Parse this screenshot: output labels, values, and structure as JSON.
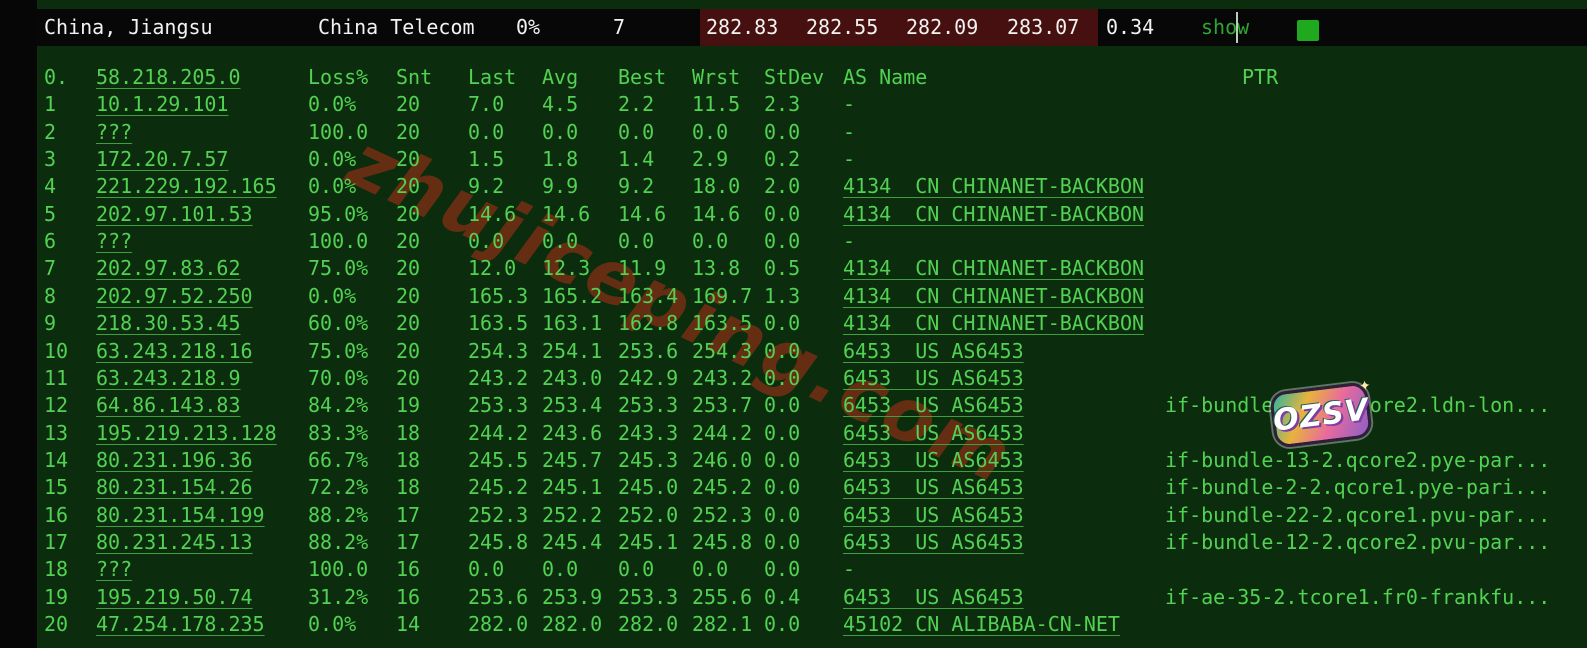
{
  "colors": {
    "bg": "#0b2d0e",
    "strip": "#060606",
    "bar_bg": "#070707",
    "bar_text": "#f2f2f2",
    "maroon": "#471010",
    "green": "#52d152",
    "underline": "#3f9e3f",
    "show_green": "#2fa62f",
    "square_green": "#1ea91e",
    "watermark": "#7c2d12"
  },
  "summary_bar": {
    "location": "China, Jiangsu",
    "isp": "China Telecom",
    "loss": "0%",
    "hops": "7",
    "latencies": [
      "282.83",
      "282.55",
      "282.09",
      "283.07"
    ],
    "stdev": "0.34",
    "show_label": "show",
    "status_square_icon": "green-square"
  },
  "watermark_text": "zhujiceping.com",
  "sticker_text": "OZSV",
  "trace_table": {
    "header": {
      "hop": "0.",
      "ip": "58.218.205.0",
      "loss": "Loss%",
      "snt": "Snt",
      "last": "Last",
      "avg": "Avg",
      "best": "Best",
      "wrst": "Wrst",
      "stdev": "StDev",
      "asname": "AS Name",
      "ptr": "PTR"
    },
    "rows": [
      {
        "hop": "1",
        "ip": "10.1.29.101",
        "loss": "0.0%",
        "snt": "20",
        "last": "7.0",
        "avg": "4.5",
        "best": "2.2",
        "wrst": "11.5",
        "stdev": "2.3",
        "asname": "-",
        "ptr": ""
      },
      {
        "hop": "2",
        "ip": "???",
        "loss": "100.0",
        "snt": "20",
        "last": "0.0",
        "avg": "0.0",
        "best": "0.0",
        "wrst": "0.0",
        "stdev": "0.0",
        "asname": "-",
        "ptr": ""
      },
      {
        "hop": "3",
        "ip": "172.20.7.57",
        "loss": "0.0%",
        "snt": "20",
        "last": "1.5",
        "avg": "1.8",
        "best": "1.4",
        "wrst": "2.9",
        "stdev": "0.2",
        "asname": "-",
        "ptr": ""
      },
      {
        "hop": "4",
        "ip": "221.229.192.165",
        "loss": "0.0%",
        "snt": "20",
        "last": "9.2",
        "avg": "9.9",
        "best": "9.2",
        "wrst": "18.0",
        "stdev": "2.0",
        "asname": "4134  CN CHINANET-BACKBON",
        "ptr": ""
      },
      {
        "hop": "5",
        "ip": "202.97.101.53",
        "loss": "95.0%",
        "snt": "20",
        "last": "14.6",
        "avg": "14.6",
        "best": "14.6",
        "wrst": "14.6",
        "stdev": "0.0",
        "asname": "4134  CN CHINANET-BACKBON",
        "ptr": ""
      },
      {
        "hop": "6",
        "ip": "???",
        "loss": "100.0",
        "snt": "20",
        "last": "0.0",
        "avg": "0.0",
        "best": "0.0",
        "wrst": "0.0",
        "stdev": "0.0",
        "asname": "-",
        "ptr": ""
      },
      {
        "hop": "7",
        "ip": "202.97.83.62",
        "loss": "75.0%",
        "snt": "20",
        "last": "12.0",
        "avg": "12.3",
        "best": "11.9",
        "wrst": "13.8",
        "stdev": "0.5",
        "asname": "4134  CN CHINANET-BACKBON",
        "ptr": ""
      },
      {
        "hop": "8",
        "ip": "202.97.52.250",
        "loss": "0.0%",
        "snt": "20",
        "last": "165.3",
        "avg": "165.2",
        "best": "163.4",
        "wrst": "169.7",
        "stdev": "1.3",
        "asname": "4134  CN CHINANET-BACKBON",
        "ptr": ""
      },
      {
        "hop": "9",
        "ip": "218.30.53.45",
        "loss": "60.0%",
        "snt": "20",
        "last": "163.5",
        "avg": "163.1",
        "best": "162.8",
        "wrst": "163.5",
        "stdev": "0.0",
        "asname": "4134  CN CHINANET-BACKBON",
        "ptr": ""
      },
      {
        "hop": "10",
        "ip": "63.243.218.16",
        "loss": "75.0%",
        "snt": "20",
        "last": "254.3",
        "avg": "254.1",
        "best": "253.6",
        "wrst": "254.3",
        "stdev": "0.0",
        "asname": "6453  US AS6453",
        "ptr": ""
      },
      {
        "hop": "11",
        "ip": "63.243.218.9",
        "loss": "70.0%",
        "snt": "20",
        "last": "243.2",
        "avg": "243.0",
        "best": "242.9",
        "wrst": "243.2",
        "stdev": "0.0",
        "asname": "6453  US AS6453",
        "ptr": ""
      },
      {
        "hop": "12",
        "ip": "64.86.143.83",
        "loss": "84.2%",
        "snt": "19",
        "last": "253.3",
        "avg": "253.4",
        "best": "253.3",
        "wrst": "253.7",
        "stdev": "0.0",
        "asname": "6453  US AS6453",
        "ptr": "if-bundle-12-2.qcore2.ldn-lon..."
      },
      {
        "hop": "13",
        "ip": "195.219.213.128",
        "loss": "83.3%",
        "snt": "18",
        "last": "244.2",
        "avg": "243.6",
        "best": "243.3",
        "wrst": "244.2",
        "stdev": "0.0",
        "asname": "6453  US AS6453",
        "ptr": ""
      },
      {
        "hop": "14",
        "ip": "80.231.196.36",
        "loss": "66.7%",
        "snt": "18",
        "last": "245.5",
        "avg": "245.7",
        "best": "245.3",
        "wrst": "246.0",
        "stdev": "0.0",
        "asname": "6453  US AS6453",
        "ptr": "if-bundle-13-2.qcore2.pye-par..."
      },
      {
        "hop": "15",
        "ip": "80.231.154.26",
        "loss": "72.2%",
        "snt": "18",
        "last": "245.2",
        "avg": "245.1",
        "best": "245.0",
        "wrst": "245.2",
        "stdev": "0.0",
        "asname": "6453  US AS6453",
        "ptr": "if-bundle-2-2.qcore1.pye-pari..."
      },
      {
        "hop": "16",
        "ip": "80.231.154.199",
        "loss": "88.2%",
        "snt": "17",
        "last": "252.3",
        "avg": "252.2",
        "best": "252.0",
        "wrst": "252.3",
        "stdev": "0.0",
        "asname": "6453  US AS6453",
        "ptr": "if-bundle-22-2.qcore1.pvu-par..."
      },
      {
        "hop": "17",
        "ip": "80.231.245.13",
        "loss": "88.2%",
        "snt": "17",
        "last": "245.8",
        "avg": "245.4",
        "best": "245.1",
        "wrst": "245.8",
        "stdev": "0.0",
        "asname": "6453  US AS6453",
        "ptr": "if-bundle-12-2.qcore2.pvu-par..."
      },
      {
        "hop": "18",
        "ip": "???",
        "loss": "100.0",
        "snt": "16",
        "last": "0.0",
        "avg": "0.0",
        "best": "0.0",
        "wrst": "0.0",
        "stdev": "0.0",
        "asname": "-",
        "ptr": ""
      },
      {
        "hop": "19",
        "ip": "195.219.50.74",
        "loss": "31.2%",
        "snt": "16",
        "last": "253.6",
        "avg": "253.9",
        "best": "253.3",
        "wrst": "255.6",
        "stdev": "0.4",
        "asname": "6453  US AS6453",
        "ptr": "if-ae-35-2.tcore1.fr0-frankfu..."
      },
      {
        "hop": "20",
        "ip": "47.254.178.235",
        "loss": "0.0%",
        "snt": "14",
        "last": "282.0",
        "avg": "282.0",
        "best": "282.0",
        "wrst": "282.1",
        "stdev": "0.0",
        "asname": "45102 CN ALIBABA-CN-NET",
        "ptr": ""
      }
    ]
  }
}
